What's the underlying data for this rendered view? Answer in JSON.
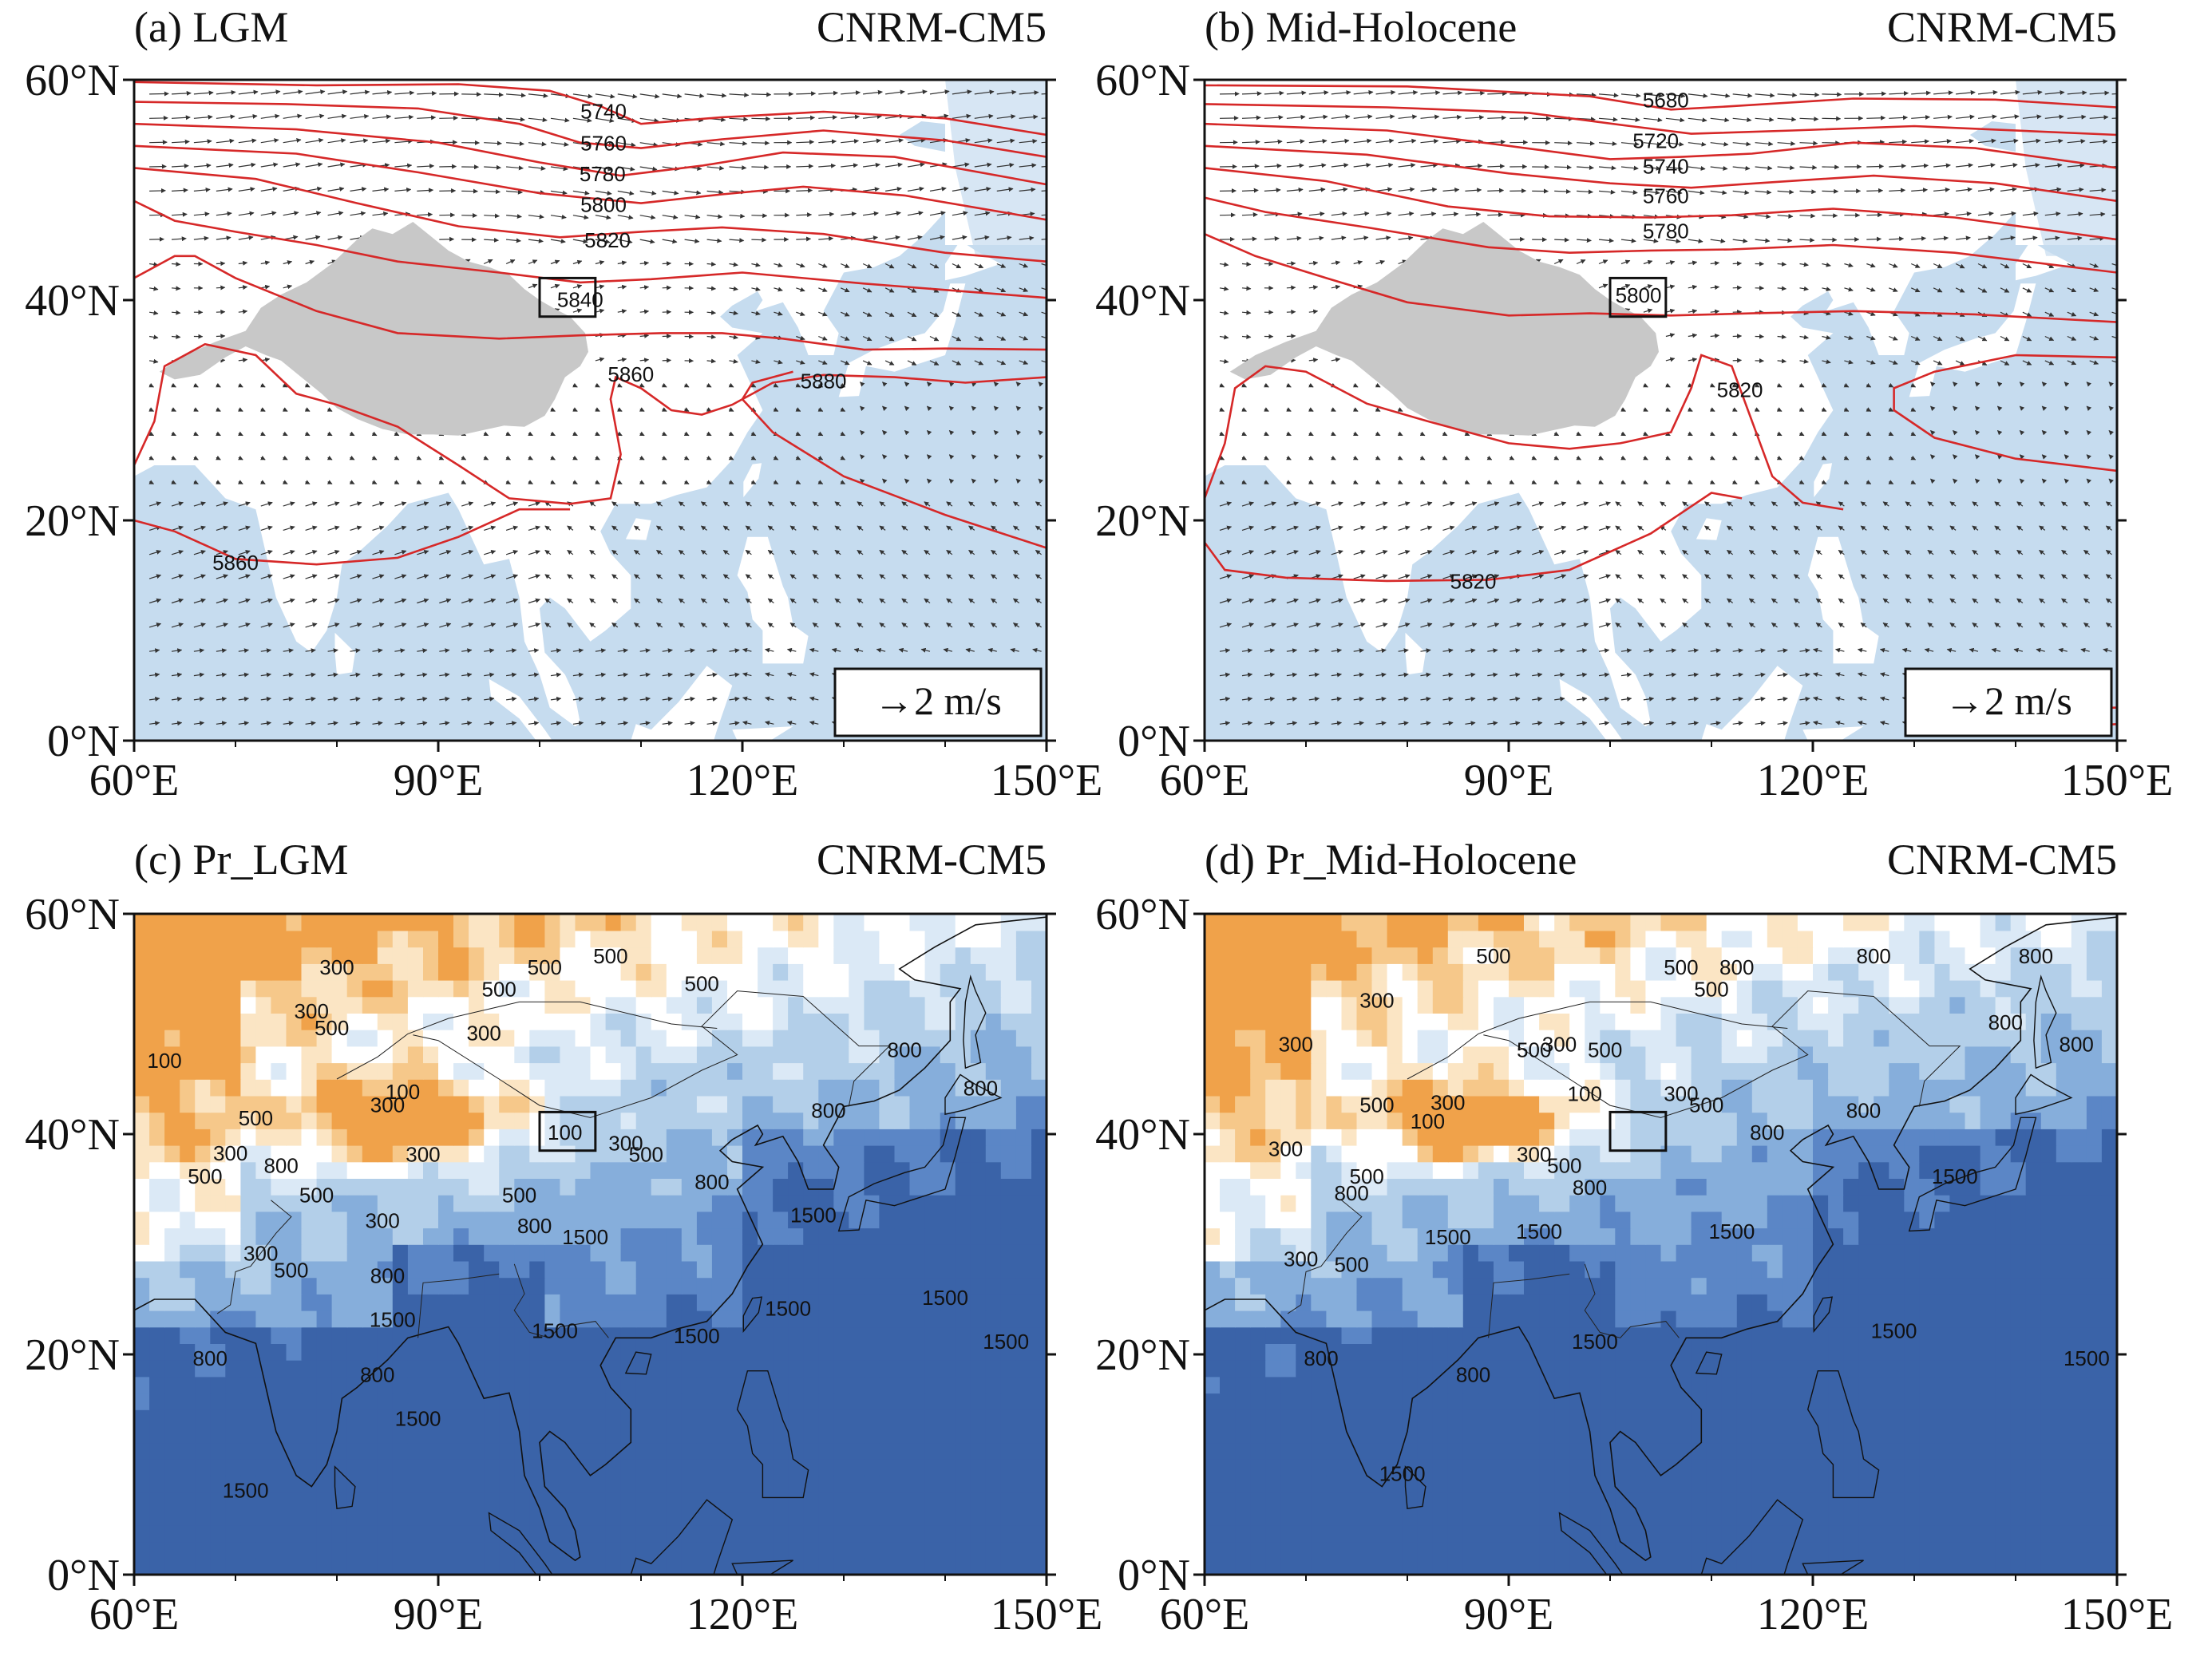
{
  "figure": {
    "panels": [
      {
        "id": "a",
        "title_left": "(a)  LGM",
        "title_right": "CNRM-CM5",
        "kind": "wind",
        "contour_labels": [
          {
            "text": "5740",
            "lon": 106.3,
            "lat": 56.5
          },
          {
            "text": "5760",
            "lon": 106.3,
            "lat": 53.6
          },
          {
            "text": "5780",
            "lon": 106.2,
            "lat": 50.8
          },
          {
            "text": "5800",
            "lon": 106.3,
            "lat": 48.0
          },
          {
            "text": "5820",
            "lon": 106.7,
            "lat": 44.8
          },
          {
            "text": "5840",
            "lon": 104.0,
            "lat": 39.4
          },
          {
            "text": "5860",
            "lon": 109.0,
            "lat": 32.6
          },
          {
            "text": "5880",
            "lon": 128.0,
            "lat": 32.0
          },
          {
            "text": "5860",
            "lon": 70.0,
            "lat": 15.5
          }
        ],
        "reference_vector": "→2 m/s"
      },
      {
        "id": "b",
        "title_left": "(b)  Mid-Holocene",
        "title_right": "CNRM-CM5",
        "kind": "wind",
        "contour_labels": [
          {
            "text": "5680",
            "lon": 105.5,
            "lat": 57.5
          },
          {
            "text": "5720",
            "lon": 104.5,
            "lat": 53.8
          },
          {
            "text": "5740",
            "lon": 105.5,
            "lat": 51.5
          },
          {
            "text": "5760",
            "lon": 105.5,
            "lat": 48.8
          },
          {
            "text": "5780",
            "lon": 105.5,
            "lat": 45.6
          },
          {
            "text": "5800",
            "lon": 102.8,
            "lat": 39.8
          },
          {
            "text": "5820",
            "lon": 112.8,
            "lat": 31.2
          },
          {
            "text": "5820",
            "lon": 86.5,
            "lat": 13.8
          }
        ],
        "reference_vector": "→2 m/s"
      },
      {
        "id": "c",
        "title_left": "(c)  Pr_LGM",
        "title_right": "CNRM-CM5",
        "kind": "precip",
        "contour_labels": [
          {
            "text": "100",
            "lon": 63.0,
            "lat": 46.0
          },
          {
            "text": "300",
            "lon": 80.0,
            "lat": 54.5
          },
          {
            "text": "300",
            "lon": 77.5,
            "lat": 50.5
          },
          {
            "text": "500",
            "lon": 79.5,
            "lat": 49.0
          },
          {
            "text": "500",
            "lon": 96.0,
            "lat": 52.5
          },
          {
            "text": "500",
            "lon": 100.5,
            "lat": 54.5
          },
          {
            "text": "500",
            "lon": 107.0,
            "lat": 55.5
          },
          {
            "text": "500",
            "lon": 116.0,
            "lat": 53.0
          },
          {
            "text": "300",
            "lon": 94.5,
            "lat": 48.5
          },
          {
            "text": "100",
            "lon": 86.5,
            "lat": 43.2
          },
          {
            "text": "300",
            "lon": 85.0,
            "lat": 42.0
          },
          {
            "text": "100",
            "lon": 102.5,
            "lat": 39.5
          },
          {
            "text": "300",
            "lon": 108.5,
            "lat": 38.5
          },
          {
            "text": "500",
            "lon": 110.5,
            "lat": 37.5
          },
          {
            "text": "500",
            "lon": 72.0,
            "lat": 40.8
          },
          {
            "text": "300",
            "lon": 69.5,
            "lat": 37.6
          },
          {
            "text": "500",
            "lon": 67.0,
            "lat": 35.5
          },
          {
            "text": "800",
            "lon": 74.5,
            "lat": 36.5
          },
          {
            "text": "300",
            "lon": 88.5,
            "lat": 37.5
          },
          {
            "text": "500",
            "lon": 78.0,
            "lat": 33.8
          },
          {
            "text": "500",
            "lon": 98.0,
            "lat": 33.8
          },
          {
            "text": "300",
            "lon": 84.5,
            "lat": 31.5
          },
          {
            "text": "800",
            "lon": 99.5,
            "lat": 31.0
          },
          {
            "text": "300",
            "lon": 72.5,
            "lat": 28.5
          },
          {
            "text": "500",
            "lon": 75.5,
            "lat": 27.0
          },
          {
            "text": "800",
            "lon": 85.0,
            "lat": 26.5
          },
          {
            "text": "1500",
            "lon": 104.5,
            "lat": 30.0
          },
          {
            "text": "1500",
            "lon": 127.0,
            "lat": 32.0
          },
          {
            "text": "800",
            "lon": 117.0,
            "lat": 35.0
          },
          {
            "text": "800",
            "lon": 128.5,
            "lat": 41.5
          },
          {
            "text": "800",
            "lon": 136.0,
            "lat": 47.0
          },
          {
            "text": "800",
            "lon": 143.5,
            "lat": 43.5
          },
          {
            "text": "1500",
            "lon": 101.5,
            "lat": 21.5
          },
          {
            "text": "1500",
            "lon": 115.5,
            "lat": 21.0
          },
          {
            "text": "1500",
            "lon": 124.5,
            "lat": 23.5
          },
          {
            "text": "1500",
            "lon": 140.0,
            "lat": 24.5
          },
          {
            "text": "1500",
            "lon": 146.0,
            "lat": 20.5
          },
          {
            "text": "1500",
            "lon": 85.5,
            "lat": 22.5
          },
          {
            "text": "800",
            "lon": 84.0,
            "lat": 17.5
          },
          {
            "text": "800",
            "lon": 67.5,
            "lat": 19.0
          },
          {
            "text": "1500",
            "lon": 88.0,
            "lat": 13.5
          },
          {
            "text": "1500",
            "lon": 71.0,
            "lat": 7.0
          }
        ]
      },
      {
        "id": "d",
        "title_left": "(d)  Pr_Mid-Holocene",
        "title_right": "CNRM-CM5",
        "kind": "precip",
        "contour_labels": [
          {
            "text": "500",
            "lon": 88.5,
            "lat": 55.5
          },
          {
            "text": "300",
            "lon": 77.0,
            "lat": 51.5
          },
          {
            "text": "300",
            "lon": 69.0,
            "lat": 47.5
          },
          {
            "text": "500",
            "lon": 92.5,
            "lat": 47.0
          },
          {
            "text": "300",
            "lon": 95.0,
            "lat": 47.5
          },
          {
            "text": "500",
            "lon": 99.5,
            "lat": 47.0
          },
          {
            "text": "500",
            "lon": 107.0,
            "lat": 54.5
          },
          {
            "text": "500",
            "lon": 110.0,
            "lat": 52.5
          },
          {
            "text": "800",
            "lon": 112.5,
            "lat": 54.5
          },
          {
            "text": "800",
            "lon": 126.0,
            "lat": 55.5
          },
          {
            "text": "800",
            "lon": 142.0,
            "lat": 55.5
          },
          {
            "text": "800",
            "lon": 139.0,
            "lat": 49.5
          },
          {
            "text": "800",
            "lon": 146.0,
            "lat": 47.5
          },
          {
            "text": "500",
            "lon": 77.0,
            "lat": 42.0
          },
          {
            "text": "300",
            "lon": 84.0,
            "lat": 42.2
          },
          {
            "text": "100",
            "lon": 82.0,
            "lat": 40.5
          },
          {
            "text": "100",
            "lon": 97.5,
            "lat": 43.0
          },
          {
            "text": "300",
            "lon": 107.0,
            "lat": 43.0
          },
          {
            "text": "500",
            "lon": 109.5,
            "lat": 42.0
          },
          {
            "text": "800",
            "lon": 115.5,
            "lat": 39.5
          },
          {
            "text": "800",
            "lon": 125.0,
            "lat": 41.5
          },
          {
            "text": "300",
            "lon": 92.5,
            "lat": 37.5
          },
          {
            "text": "500",
            "lon": 95.5,
            "lat": 36.5
          },
          {
            "text": "800",
            "lon": 98.0,
            "lat": 34.5
          },
          {
            "text": "300",
            "lon": 68.0,
            "lat": 38.0
          },
          {
            "text": "800",
            "lon": 74.5,
            "lat": 34.0
          },
          {
            "text": "500",
            "lon": 76.0,
            "lat": 35.5
          },
          {
            "text": "1500",
            "lon": 84.0,
            "lat": 30.0
          },
          {
            "text": "1500",
            "lon": 93.0,
            "lat": 30.5
          },
          {
            "text": "1500",
            "lon": 112.0,
            "lat": 30.5
          },
          {
            "text": "1500",
            "lon": 134.0,
            "lat": 35.5
          },
          {
            "text": "300",
            "lon": 69.5,
            "lat": 28.0
          },
          {
            "text": "500",
            "lon": 74.5,
            "lat": 27.5
          },
          {
            "text": "1500",
            "lon": 128.0,
            "lat": 21.5
          },
          {
            "text": "1500",
            "lon": 147.0,
            "lat": 19.0
          },
          {
            "text": "1500",
            "lon": 98.5,
            "lat": 20.5
          },
          {
            "text": "800",
            "lon": 71.5,
            "lat": 19.0
          },
          {
            "text": "800",
            "lon": 86.5,
            "lat": 17.5
          },
          {
            "text": "1500",
            "lon": 79.5,
            "lat": 8.5
          }
        ]
      }
    ],
    "axes": {
      "x_ticks": [
        "60°E",
        "90°E",
        "120°E",
        "150°E"
      ],
      "y_ticks": [
        "0°N",
        "20°N",
        "40°N",
        "60°N"
      ],
      "lon_values": [
        60,
        90,
        120,
        150
      ],
      "lat_values": [
        0,
        20,
        40,
        60
      ],
      "lon_range": [
        60,
        150
      ],
      "lat_range": [
        0,
        60
      ]
    },
    "colors": {
      "ocean_light": "#c6dcef",
      "land": "#ffffff",
      "plateau_mask": "#c8c8c8",
      "height_contour": "#d62828",
      "vector": "#333333",
      "precip_scale": [
        "#f0a24a",
        "#f6c88a",
        "#fbe5c4",
        "#ffffff",
        "#dbe9f6",
        "#b3cfe9",
        "#86aedb",
        "#5b86c6",
        "#3a63a8"
      ]
    }
  }
}
